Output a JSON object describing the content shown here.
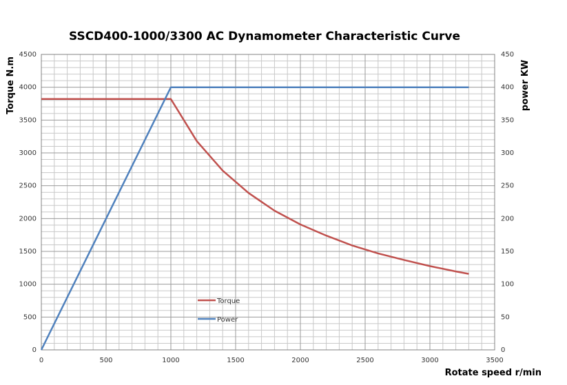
{
  "chart_data": {
    "type": "line",
    "title": "SSCD400-1000/3300 AC Dynamometer Characteristic Curve",
    "xlabel": "Rotate speed r/min",
    "ylabel_left": "Torque N.m",
    "ylabel_right": "power KW",
    "xlim": [
      0,
      3500
    ],
    "xticks": [
      0,
      500,
      1000,
      1500,
      2000,
      2500,
      3000,
      3500
    ],
    "ylim_left": [
      0,
      4500
    ],
    "yticks_left": [
      0,
      500,
      1000,
      1500,
      2000,
      2500,
      3000,
      3500,
      4000,
      4500
    ],
    "ylim_right": [
      0,
      450
    ],
    "yticks_right": [
      0,
      50,
      100,
      150,
      200,
      250,
      300,
      350,
      400,
      450
    ],
    "grid": true,
    "legend_placement": "lower-center",
    "series": [
      {
        "name": "Torque",
        "axis": "left",
        "color": "#c0504d",
        "x": [
          0,
          1000,
          1200,
          1400,
          1600,
          1800,
          2000,
          2200,
          2400,
          2600,
          2800,
          3000,
          3200,
          3300
        ],
        "y": [
          3820,
          3820,
          3180,
          2730,
          2390,
          2120,
          1910,
          1740,
          1590,
          1470,
          1370,
          1275,
          1195,
          1158
        ]
      },
      {
        "name": "Power",
        "axis": "right",
        "color": "#4f81bd",
        "x": [
          0,
          1000,
          3300
        ],
        "y": [
          0,
          400,
          400
        ]
      }
    ]
  }
}
